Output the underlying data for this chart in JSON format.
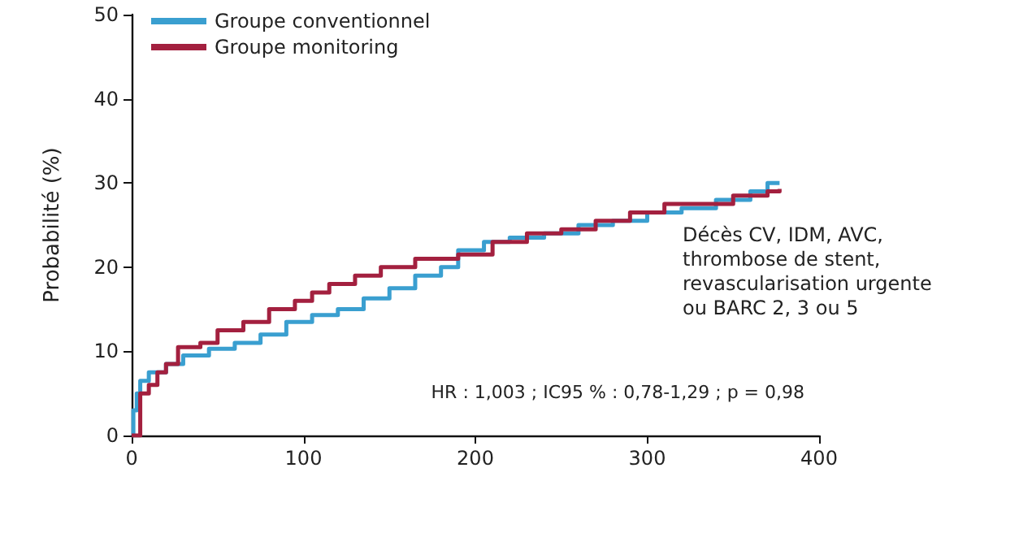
{
  "chart_data": {
    "type": "step",
    "ylabel": "Probabilité (%)",
    "annotations": [
      "Décès CV, IDM, AVC,\nthrombose de stent,\nrevascularisation urgente\nou BARC 2, 3 ou 5",
      "HR : 1,003 ; IC95 % : 0,78-1,29 ; p = 0,98"
    ],
    "series": [
      {
        "name": "Groupe conventionnel",
        "color": "#3a9fd0",
        "x": [
          0,
          1,
          3,
          5,
          10,
          20,
          30,
          45,
          60,
          75,
          90,
          105,
          120,
          135,
          150,
          165,
          180,
          190,
          205,
          220,
          240,
          260,
          280,
          300,
          320,
          340,
          360,
          370,
          377
        ],
        "values": [
          0,
          3,
          5,
          6.5,
          7.5,
          8.5,
          9.5,
          10.3,
          11,
          12,
          13.5,
          14.3,
          15,
          16.3,
          17.5,
          19,
          20,
          22,
          23,
          23.5,
          24,
          25,
          25.5,
          26.5,
          27,
          28,
          29,
          30,
          30
        ]
      },
      {
        "name": "Groupe monitoring",
        "color": "#a3203f",
        "x": [
          0,
          5,
          10,
          15,
          20,
          27,
          40,
          50,
          65,
          80,
          95,
          105,
          115,
          130,
          145,
          165,
          190,
          210,
          230,
          250,
          270,
          290,
          310,
          330,
          350,
          370,
          377
        ],
        "values": [
          0,
          5,
          6,
          7.5,
          8.5,
          10.5,
          11,
          12.5,
          13.5,
          15,
          16,
          17,
          18,
          19,
          20,
          21,
          21.5,
          23,
          24,
          24.5,
          25.5,
          26.5,
          27.5,
          27.5,
          28.5,
          29,
          29.3
        ]
      }
    ],
    "xlim": [
      0,
      400
    ],
    "xticks": [
      0,
      100,
      200,
      300,
      400
    ],
    "ylim": [
      0,
      50
    ],
    "yticks": [
      0,
      10,
      20,
      30,
      40,
      50
    ],
    "grid": false,
    "legend": "top left",
    "marker": "none",
    "line_style": "solid"
  }
}
